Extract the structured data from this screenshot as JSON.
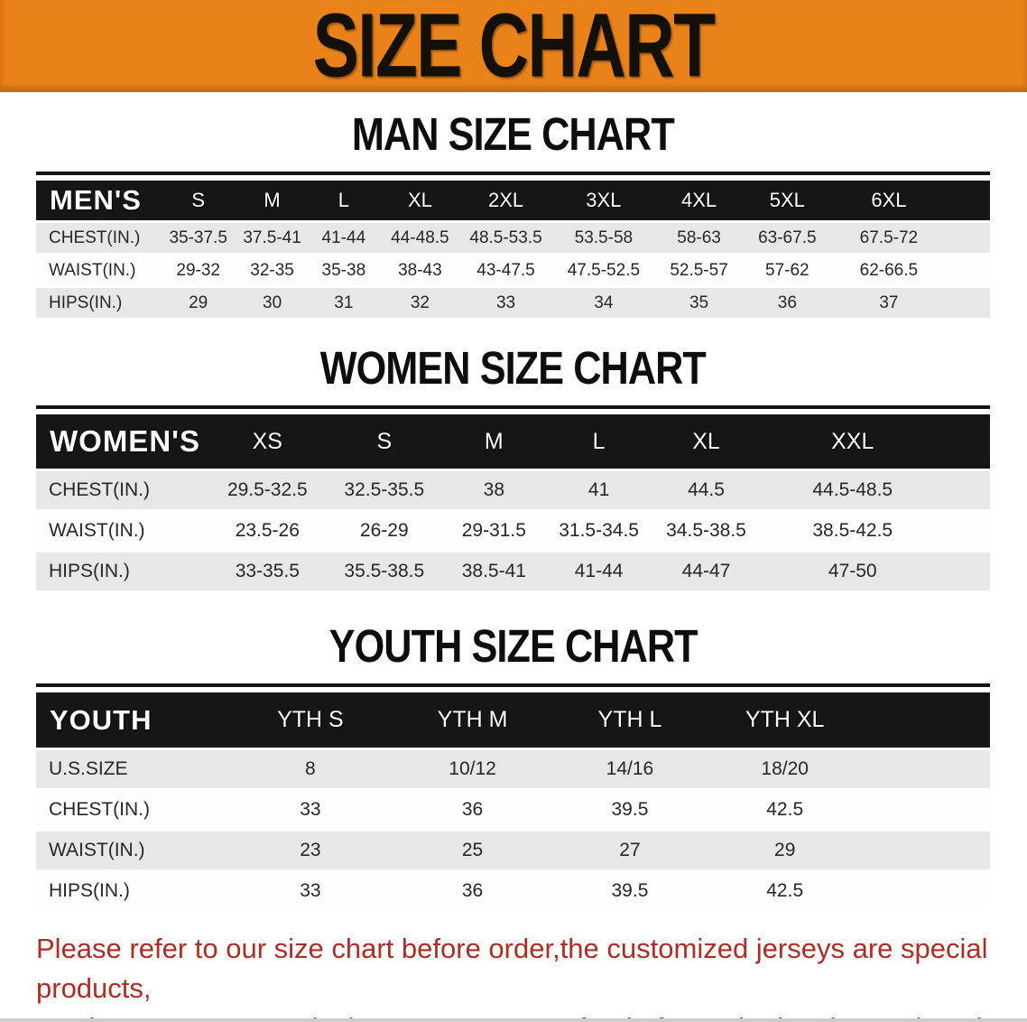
{
  "banner": {
    "title": "SIZE CHART"
  },
  "sections": [
    {
      "heading": "MAN SIZE CHART",
      "table": {
        "corner": "MEN'S",
        "columns": [
          "S",
          "M",
          "L",
          "XL",
          "2XL",
          "3XL",
          "4XL",
          "5XL",
          "6XL"
        ],
        "rows": [
          {
            "label": "CHEST(IN.)",
            "values": [
              "35-37.5",
              "37.5-41",
              "41-44",
              "44-48.5",
              "48.5-53.5",
              "53.5-58",
              "58-63",
              "63-67.5",
              "67.5-72"
            ]
          },
          {
            "label": "WAIST(IN.)",
            "values": [
              "29-32",
              "32-35",
              "35-38",
              "38-43",
              "43-47.5",
              "47.5-52.5",
              "52.5-57",
              "57-62",
              "62-66.5"
            ]
          },
          {
            "label": "HIPS(IN.)",
            "values": [
              "29",
              "30",
              "31",
              "32",
              "33",
              "34",
              "35",
              "36",
              "37"
            ]
          }
        ]
      }
    },
    {
      "heading": "WOMEN SIZE CHART",
      "table": {
        "corner": "WOMEN'S",
        "columns": [
          "XS",
          "S",
          "M",
          "L",
          "XL",
          "XXL"
        ],
        "rows": [
          {
            "label": "CHEST(IN.)",
            "values": [
              "29.5-32.5",
              "32.5-35.5",
              "38",
              "41",
              "44.5",
              "44.5-48.5"
            ]
          },
          {
            "label": "WAIST(IN.)",
            "values": [
              "23.5-26",
              "26-29",
              "29-31.5",
              "31.5-34.5",
              "34.5-38.5",
              "38.5-42.5"
            ]
          },
          {
            "label": "HIPS(IN.)",
            "values": [
              "33-35.5",
              "35.5-38.5",
              "38.5-41",
              "41-44",
              "44-47",
              "47-50"
            ]
          }
        ]
      }
    },
    {
      "heading": "YOUTH SIZE CHART",
      "table": {
        "corner": "YOUTH",
        "columns": [
          "YTH S",
          "YTH M",
          "YTH L",
          "YTH XL"
        ],
        "rows": [
          {
            "label": "U.S.SIZE",
            "values": [
              "8",
              "10/12",
              "14/16",
              "18/20"
            ]
          },
          {
            "label": "CHEST(IN.)",
            "values": [
              "33",
              "36",
              "39.5",
              "42.5"
            ]
          },
          {
            "label": "WAIST(IN.)",
            "values": [
              "23",
              "25",
              "27",
              "29"
            ]
          },
          {
            "label": "HIPS(IN.)",
            "values": [
              "33",
              "36",
              "39.5",
              "42.5"
            ]
          }
        ]
      }
    }
  ],
  "footer": {
    "lines": [
      "Please refer to our size chart before order,the customized jerseys are special products,",
      "we don't accept cancel, change, teturn or refund after order has been placed!"
    ]
  },
  "colors": {
    "banner_orange": "#E88219",
    "header_black": "#161616",
    "row_gray": "#E6E7E9",
    "notice_red": "#AD2E24"
  }
}
